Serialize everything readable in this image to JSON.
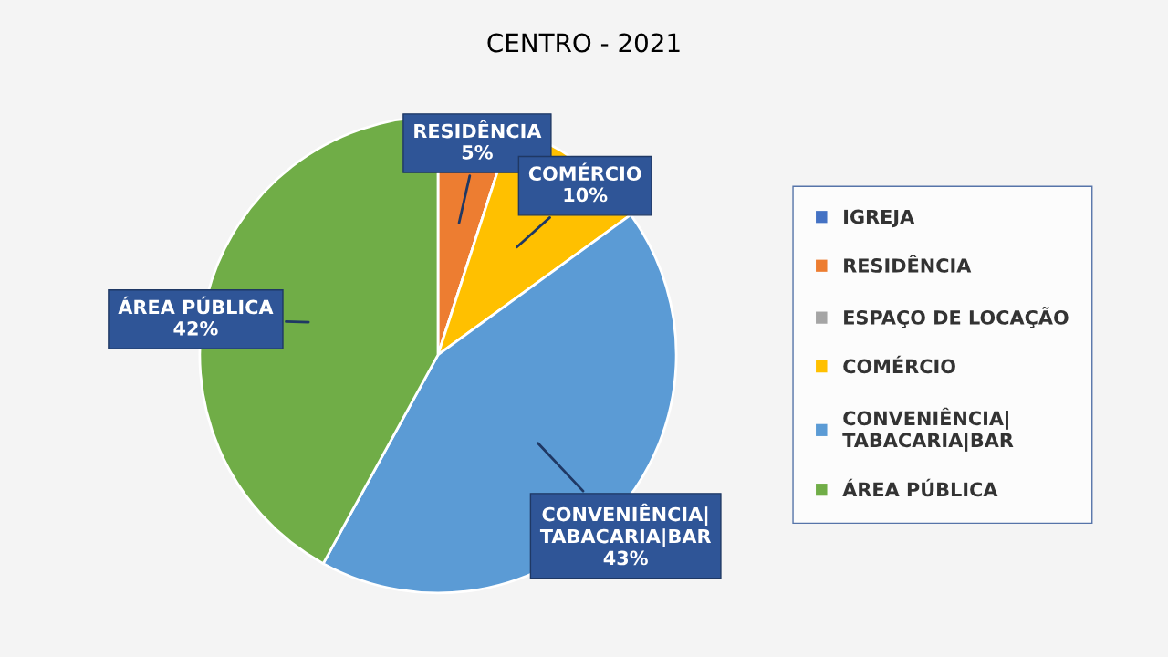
{
  "chart_data": {
    "type": "pie",
    "title": "CENTRO - 2021",
    "categories": [
      "IGREJA",
      "RESIDÊNCIA",
      "ESPAÇO DE LOCAÇÃO",
      "COMÉRCIO",
      "CONVENIÊNCIA|TABACARIA|BAR",
      "ÁREA PÚBLICA"
    ],
    "values": [
      0,
      5,
      0,
      10,
      43,
      42
    ],
    "colors": [
      "#4472c4",
      "#ed7d31",
      "#a5a5a5",
      "#ffc000",
      "#5b9bd5",
      "#70ad47"
    ],
    "value_labels": [
      null,
      "5%",
      null,
      "10%",
      "43%",
      "42%"
    ],
    "legend": "right"
  }
}
